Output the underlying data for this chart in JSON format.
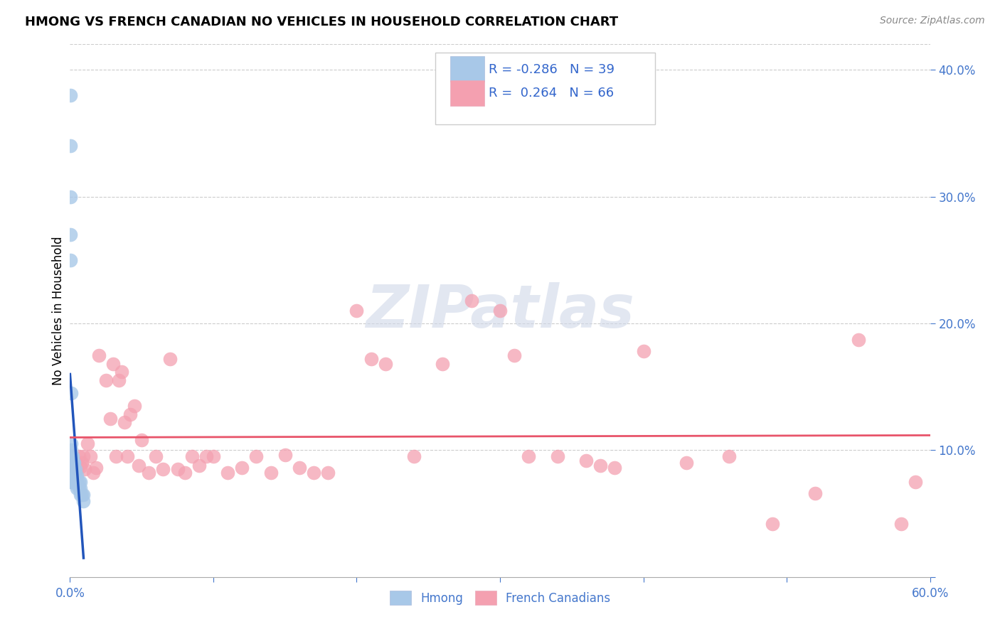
{
  "title": "HMONG VS FRENCH CANADIAN NO VEHICLES IN HOUSEHOLD CORRELATION CHART",
  "source": "Source: ZipAtlas.com",
  "ylabel": "No Vehicles in Household",
  "xlim": [
    0.0,
    0.6
  ],
  "ylim": [
    0.0,
    0.42
  ],
  "xticks": [
    0.0,
    0.1,
    0.2,
    0.3,
    0.4,
    0.5,
    0.6
  ],
  "xtick_labels": [
    "0.0%",
    "",
    "",
    "",
    "",
    "",
    "60.0%"
  ],
  "yticks": [
    0.0,
    0.1,
    0.2,
    0.3,
    0.4
  ],
  "ytick_labels_right": [
    "",
    "10.0%",
    "20.0%",
    "30.0%",
    "40.0%"
  ],
  "hmong_color": "#a8c8e8",
  "hmong_edge_color": "#7aadda",
  "french_color": "#f4a0b0",
  "french_edge_color": "#eb7a8f",
  "hmong_line_color": "#2255bb",
  "french_line_color": "#e8546a",
  "legend_label1": "Hmong",
  "legend_label2": "French Canadians",
  "R_hmong": -0.286,
  "N_hmong": 39,
  "R_french": 0.264,
  "N_french": 66,
  "background_color": "#ffffff",
  "grid_color": "#cccccc",
  "watermark": "ZIPatlas",
  "hmong_x": [
    0.0005,
    0.0005,
    0.0005,
    0.0005,
    0.0005,
    0.001,
    0.001,
    0.001,
    0.001,
    0.001,
    0.001,
    0.001,
    0.001,
    0.0015,
    0.0015,
    0.0015,
    0.002,
    0.002,
    0.002,
    0.002,
    0.0025,
    0.003,
    0.003,
    0.003,
    0.003,
    0.004,
    0.004,
    0.004,
    0.005,
    0.005,
    0.005,
    0.006,
    0.006,
    0.007,
    0.007,
    0.007,
    0.008,
    0.009,
    0.009
  ],
  "hmong_y": [
    0.38,
    0.34,
    0.3,
    0.27,
    0.25,
    0.145,
    0.105,
    0.1,
    0.095,
    0.09,
    0.085,
    0.08,
    0.075,
    0.095,
    0.085,
    0.075,
    0.095,
    0.09,
    0.082,
    0.075,
    0.09,
    0.09,
    0.085,
    0.08,
    0.075,
    0.085,
    0.08,
    0.075,
    0.08,
    0.075,
    0.07,
    0.075,
    0.07,
    0.075,
    0.07,
    0.065,
    0.065,
    0.065,
    0.06
  ],
  "french_x": [
    0.001,
    0.002,
    0.003,
    0.004,
    0.005,
    0.006,
    0.007,
    0.008,
    0.009,
    0.01,
    0.012,
    0.014,
    0.016,
    0.018,
    0.02,
    0.025,
    0.028,
    0.03,
    0.032,
    0.034,
    0.036,
    0.038,
    0.04,
    0.042,
    0.045,
    0.048,
    0.05,
    0.055,
    0.06,
    0.065,
    0.07,
    0.075,
    0.08,
    0.085,
    0.09,
    0.095,
    0.1,
    0.11,
    0.12,
    0.13,
    0.14,
    0.15,
    0.16,
    0.17,
    0.18,
    0.2,
    0.21,
    0.22,
    0.24,
    0.26,
    0.28,
    0.3,
    0.31,
    0.32,
    0.34,
    0.36,
    0.37,
    0.38,
    0.4,
    0.43,
    0.46,
    0.49,
    0.52,
    0.55,
    0.58,
    0.59
  ],
  "french_y": [
    0.095,
    0.09,
    0.088,
    0.09,
    0.085,
    0.095,
    0.087,
    0.09,
    0.095,
    0.085,
    0.105,
    0.095,
    0.082,
    0.086,
    0.175,
    0.155,
    0.125,
    0.168,
    0.095,
    0.155,
    0.162,
    0.122,
    0.095,
    0.128,
    0.135,
    0.088,
    0.108,
    0.082,
    0.095,
    0.085,
    0.172,
    0.085,
    0.082,
    0.095,
    0.088,
    0.095,
    0.095,
    0.082,
    0.086,
    0.095,
    0.082,
    0.096,
    0.086,
    0.082,
    0.082,
    0.21,
    0.172,
    0.168,
    0.095,
    0.168,
    0.218,
    0.21,
    0.175,
    0.095,
    0.095,
    0.092,
    0.088,
    0.086,
    0.178,
    0.09,
    0.095,
    0.042,
    0.066,
    0.187,
    0.042,
    0.075
  ]
}
